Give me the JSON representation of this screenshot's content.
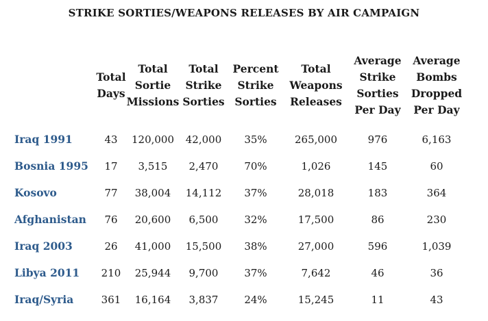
{
  "chart_data": {
    "type": "table",
    "title": "STRIKE SORTIES/WEAPONS RELEASES BY AIR CAMPAIGN",
    "columns": [
      {
        "key": "total_days",
        "lines": [
          "Total",
          "Days"
        ]
      },
      {
        "key": "total_sortie_missions",
        "lines": [
          "Total",
          "Sortie",
          "Missions"
        ]
      },
      {
        "key": "total_strike_sorties",
        "lines": [
          "Total",
          "Strike",
          "Sorties"
        ]
      },
      {
        "key": "percent_strike_sorties",
        "lines": [
          "Percent",
          "Strike",
          "Sorties"
        ]
      },
      {
        "key": "total_weapons_releases",
        "lines": [
          "Total",
          "Weapons",
          "Releases"
        ]
      },
      {
        "key": "avg_strike_sorties_per_day",
        "lines": [
          "Average",
          "Strike",
          "Sorties",
          "Per Day"
        ]
      },
      {
        "key": "avg_bombs_dropped_per_day",
        "lines": [
          "Average",
          "Bombs",
          "Dropped",
          "Per Day"
        ]
      }
    ],
    "rows": [
      {
        "campaign": "Iraq 1991",
        "values": [
          "43",
          "120,000",
          "42,000",
          "35%",
          "265,000",
          "976",
          "6,163"
        ]
      },
      {
        "campaign": "Bosnia 1995",
        "values": [
          "17",
          "3,515",
          "2,470",
          "70%",
          "1,026",
          "145",
          "60"
        ]
      },
      {
        "campaign": "Kosovo",
        "values": [
          "77",
          "38,004",
          "14,112",
          "37%",
          "28,018",
          "183",
          "364"
        ]
      },
      {
        "campaign": "Afghanistan",
        "values": [
          "76",
          "20,600",
          "6,500",
          "32%",
          "17,500",
          "86",
          "230"
        ]
      },
      {
        "campaign": "Iraq 2003",
        "values": [
          "26",
          "41,000",
          "15,500",
          "38%",
          "27,000",
          "596",
          "1,039"
        ]
      },
      {
        "campaign": "Libya 2011",
        "values": [
          "210",
          "25,944",
          "9,700",
          "37%",
          "7,642",
          "46",
          "36"
        ]
      },
      {
        "campaign": "Iraq/Syria",
        "values": [
          "361",
          "16,164",
          "3,837",
          "24%",
          "15,245",
          "11",
          "43"
        ]
      }
    ]
  },
  "colors": {
    "text": "#1a1a1a",
    "campaign_label": "#2e5b8c",
    "background": "#ffffff"
  }
}
